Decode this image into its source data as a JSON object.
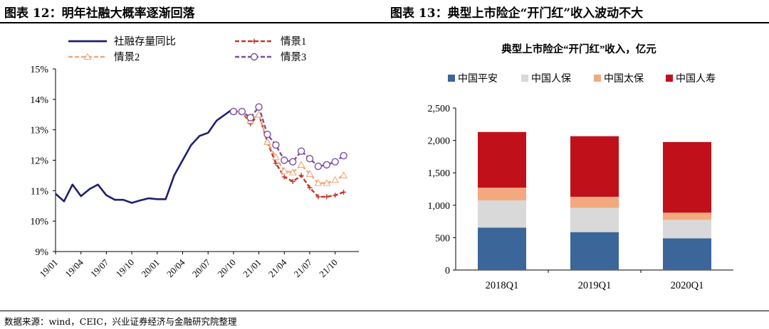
{
  "left_title": "图表 12：明年社融大概率逐渐回落",
  "right_title": "图表 13：典型上市险企“开门红”收入波动不大",
  "source_note": "数据来源：wind，CEIC，兴业证券经济与金融研究院整理",
  "chart_data": [
    {
      "type": "line",
      "title": "",
      "xlabel": "",
      "ylabel": "",
      "x_tick_labels": [
        "19/01",
        "19/04",
        "19/07",
        "19/10",
        "20/01",
        "20/04",
        "20/07",
        "20/10",
        "21/01",
        "21/04",
        "21/07",
        "21/10"
      ],
      "y_tick_labels": [
        "9%",
        "10%",
        "11%",
        "12%",
        "13%",
        "14%",
        "15%"
      ],
      "ylim": [
        9,
        15
      ],
      "legend_position": "top",
      "series": [
        {
          "name": "社融存量同比",
          "color": "#1f1f6e",
          "style": "solid",
          "marker": "none",
          "start": "19/01",
          "values": [
            10.9,
            10.65,
            11.2,
            10.82,
            11.05,
            11.2,
            10.85,
            10.7,
            10.7,
            10.6,
            10.68,
            10.75,
            10.72,
            10.72,
            11.5,
            12.0,
            12.5,
            12.8,
            12.9,
            13.3,
            13.5,
            13.7
          ]
        },
        {
          "name": "情景1",
          "color": "#c0392b",
          "style": "dashed",
          "marker": "plus",
          "start": "20/10",
          "values": [
            13.6,
            13.6,
            13.2,
            13.5,
            12.6,
            11.9,
            11.45,
            11.3,
            11.5,
            11.1,
            10.8,
            10.8,
            10.85,
            10.95
          ]
        },
        {
          "name": "情景2",
          "color": "#f0a878",
          "style": "dashed",
          "marker": "triangle",
          "start": "20/10",
          "values": [
            13.6,
            13.6,
            13.3,
            13.5,
            12.6,
            12.1,
            11.65,
            11.6,
            11.85,
            11.55,
            11.25,
            11.25,
            11.35,
            11.5
          ]
        },
        {
          "name": "情景3",
          "color": "#7b4fa0",
          "style": "dashed",
          "marker": "circle",
          "start": "20/10",
          "values": [
            13.6,
            13.6,
            13.4,
            13.75,
            12.85,
            12.5,
            12.0,
            11.95,
            12.3,
            12.05,
            11.8,
            11.85,
            11.95,
            12.15
          ]
        }
      ]
    },
    {
      "type": "bar",
      "stacked": true,
      "title": "典型上市险企“开门红”收入，亿元",
      "xlabel": "",
      "ylabel": "",
      "categories": [
        "2018Q1",
        "2019Q1",
        "2020Q1"
      ],
      "y_tick_labels": [
        "0",
        "500",
        "1,000",
        "1,500",
        "2,000",
        "2,500"
      ],
      "ylim": [
        0,
        2500
      ],
      "legend_position": "top",
      "series": [
        {
          "name": "中国平安",
          "color": "#3a6699",
          "values": [
            655,
            585,
            490
          ]
        },
        {
          "name": "中国人保",
          "color": "#d9d9d9",
          "values": [
            420,
            375,
            285
          ]
        },
        {
          "name": "中国太保",
          "color": "#f2a97e",
          "values": [
            195,
            170,
            110
          ]
        },
        {
          "name": "中国人寿",
          "color": "#c0111b",
          "values": [
            860,
            935,
            1090
          ]
        }
      ]
    }
  ]
}
